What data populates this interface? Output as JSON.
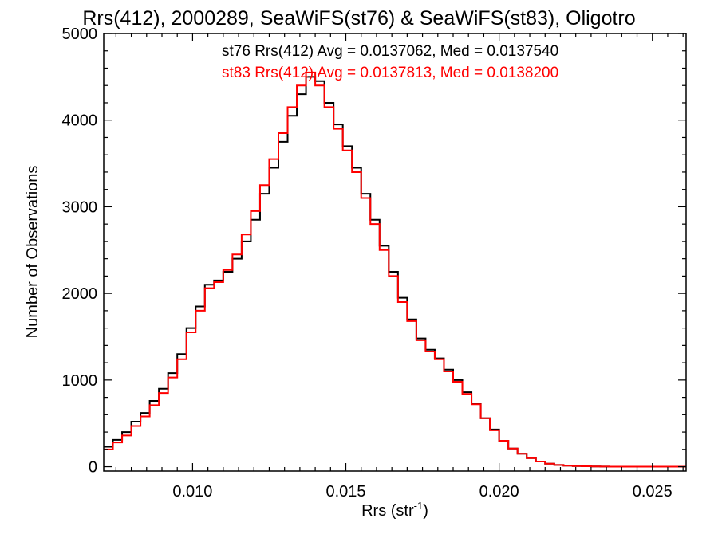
{
  "chart_data": {
    "type": "line",
    "title": "Rrs(412), 2000289, SeaWiFS(st76) & SeaWiFS(st83), Oligotro",
    "xlabel": "Rrs (str",
    "xlabel_sup": "-1",
    "xlabel_close": ")",
    "ylabel": "Number of Observations",
    "xlim": [
      0.0071,
      0.0261
    ],
    "ylim": [
      -50,
      5000
    ],
    "xticks": [
      0.01,
      0.015,
      0.02,
      0.025
    ],
    "xtick_labels": [
      "0.010",
      "0.015",
      "0.020",
      "0.025"
    ],
    "yticks": [
      0,
      1000,
      2000,
      3000,
      4000,
      5000
    ],
    "ytick_labels": [
      "0",
      "1000",
      "2000",
      "3000",
      "4000",
      "5000"
    ],
    "grid": false,
    "legend": [
      {
        "text": "st76 Rrs(412) Avg = 0.0137062, Med = 0.0137540",
        "color": "#000000"
      },
      {
        "text": "st83 Rrs(412) Avg = 0.0137813, Med = 0.0138200",
        "color": "#ff0000"
      }
    ],
    "x": [
      0.0071,
      0.0074,
      0.0077,
      0.008,
      0.0083,
      0.0086,
      0.0089,
      0.0092,
      0.0095,
      0.0098,
      0.0101,
      0.0104,
      0.0107,
      0.011,
      0.0113,
      0.0116,
      0.0119,
      0.0122,
      0.0125,
      0.0128,
      0.0131,
      0.0134,
      0.0137,
      0.014,
      0.0143,
      0.0146,
      0.0149,
      0.0152,
      0.0155,
      0.0158,
      0.0161,
      0.0164,
      0.0167,
      0.017,
      0.0173,
      0.0176,
      0.0179,
      0.0182,
      0.0185,
      0.0188,
      0.0191,
      0.0194,
      0.0197,
      0.02,
      0.0203,
      0.0206,
      0.0209,
      0.0212,
      0.0215,
      0.0218,
      0.0221,
      0.0224,
      0.0227,
      0.023,
      0.0233,
      0.0236,
      0.0239,
      0.0242,
      0.0245,
      0.0248,
      0.0251,
      0.0254,
      0.0257,
      0.026
    ],
    "series": [
      {
        "color": "#000000",
        "values": [
          230,
          310,
          400,
          520,
          620,
          760,
          900,
          1080,
          1300,
          1600,
          1850,
          2100,
          2150,
          2250,
          2400,
          2600,
          2850,
          3150,
          3450,
          3750,
          4050,
          4300,
          4500,
          4450,
          4200,
          3950,
          3700,
          3450,
          3150,
          2850,
          2550,
          2250,
          1950,
          1700,
          1480,
          1350,
          1250,
          1120,
          1000,
          860,
          730,
          560,
          430,
          300,
          210,
          150,
          100,
          60,
          35,
          20,
          12,
          8,
          5,
          3,
          2,
          1,
          1,
          0,
          0,
          0,
          0,
          0,
          0,
          0
        ]
      },
      {
        "color": "#ff0000",
        "values": [
          200,
          280,
          360,
          470,
          580,
          710,
          850,
          1030,
          1240,
          1550,
          1800,
          2060,
          2130,
          2270,
          2450,
          2680,
          2950,
          3250,
          3550,
          3850,
          4150,
          4400,
          4550,
          4400,
          4150,
          3900,
          3650,
          3400,
          3100,
          2800,
          2500,
          2200,
          1900,
          1680,
          1460,
          1330,
          1240,
          1100,
          980,
          840,
          720,
          560,
          420,
          300,
          210,
          150,
          100,
          60,
          35,
          20,
          12,
          8,
          5,
          3,
          2,
          1,
          1,
          0,
          0,
          0,
          0,
          0,
          0,
          0
        ]
      }
    ]
  }
}
